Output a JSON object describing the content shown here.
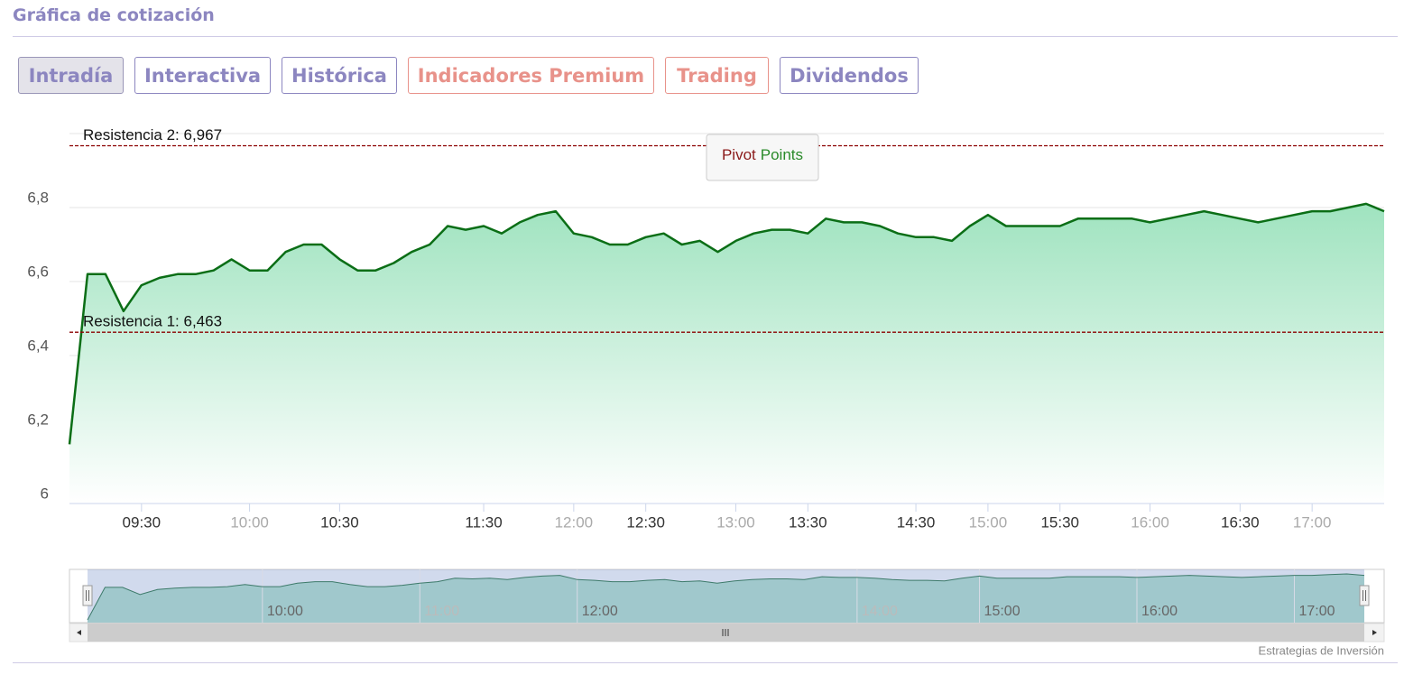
{
  "header": {
    "title": "Gráfica de cotización"
  },
  "tabs": [
    "Intradía",
    "Interactiva",
    "Histórica",
    "Indicadores Premium",
    "Trading",
    "Dividendos"
  ],
  "chart_data": {
    "type": "area",
    "x": [
      "09:10",
      "09:15",
      "09:20",
      "09:25",
      "09:30",
      "09:35",
      "09:40",
      "09:45",
      "09:50",
      "09:55",
      "10:00",
      "10:06",
      "10:12",
      "10:18",
      "10:24",
      "10:30",
      "10:40",
      "10:45",
      "10:55",
      "11:00",
      "11:10",
      "11:15",
      "11:20",
      "11:30",
      "11:36",
      "11:42",
      "11:48",
      "11:54",
      "12:00",
      "12:08",
      "12:15",
      "12:22",
      "12:30",
      "12:36",
      "12:42",
      "12:48",
      "12:54",
      "13:00",
      "13:08",
      "13:15",
      "13:22",
      "13:30",
      "13:40",
      "13:50",
      "14:00",
      "14:10",
      "14:20",
      "14:30",
      "14:38",
      "14:45",
      "14:52",
      "15:00",
      "15:08",
      "15:15",
      "15:22",
      "15:30",
      "15:36",
      "15:42",
      "15:48",
      "15:54",
      "16:00",
      "16:06",
      "16:12",
      "16:18",
      "16:24",
      "16:30",
      "16:38",
      "16:45",
      "16:52",
      "17:00",
      "17:10",
      "17:15",
      "17:20",
      "17:30"
    ],
    "values": [
      6.16,
      6.62,
      6.62,
      6.52,
      6.59,
      6.61,
      6.62,
      6.62,
      6.63,
      6.66,
      6.63,
      6.63,
      6.68,
      6.7,
      6.7,
      6.66,
      6.63,
      6.63,
      6.65,
      6.68,
      6.7,
      6.75,
      6.74,
      6.75,
      6.73,
      6.76,
      6.78,
      6.79,
      6.73,
      6.72,
      6.7,
      6.7,
      6.72,
      6.73,
      6.7,
      6.71,
      6.68,
      6.71,
      6.73,
      6.74,
      6.74,
      6.73,
      6.77,
      6.76,
      6.76,
      6.75,
      6.73,
      6.72,
      6.72,
      6.71,
      6.75,
      6.78,
      6.75,
      6.75,
      6.75,
      6.75,
      6.77,
      6.77,
      6.77,
      6.77,
      6.76,
      6.77,
      6.78,
      6.79,
      6.78,
      6.77,
      6.76,
      6.77,
      6.78,
      6.79,
      6.79,
      6.8,
      6.81,
      6.79
    ],
    "color": "#0b6e16",
    "ylim": [
      6,
      7
    ],
    "yticks": [
      6,
      {
        "value": 6.2,
        "label": "6,2"
      },
      {
        "value": 6.4,
        "label": "6,4"
      },
      {
        "value": 6.6,
        "label": "6,6"
      },
      {
        "value": 6.8,
        "label": "6,8"
      }
    ],
    "xticks": [
      "09:30",
      "10:00",
      "10:30",
      "11:30",
      "12:00",
      "12:30",
      "13:00",
      "13:30",
      "14:30",
      "15:00",
      "15:30",
      "16:00",
      "16:30",
      "17:00"
    ],
    "muted_xticks": [
      1,
      4,
      6,
      9,
      11,
      13
    ],
    "grid": true,
    "plot_lines": [
      {
        "label": "Resistencia 2: 6,967",
        "value": 6.967,
        "color": "#8b0000"
      },
      {
        "label": "Resistencia 1: 6,463",
        "value": 6.463,
        "color": "#8b0000"
      }
    ],
    "toggle": {
      "words": [
        "Pivot",
        "Points"
      ],
      "colors": [
        "#8b1a1a",
        "#2a8a2a"
      ]
    },
    "navigator": {
      "xticks": [
        "10:00",
        "11:00",
        "12:00",
        "14:00",
        "15:00",
        "16:00",
        "17:00"
      ],
      "muted_xticks": [
        1,
        3
      ]
    },
    "credit": "Estrategias de Inversión"
  }
}
